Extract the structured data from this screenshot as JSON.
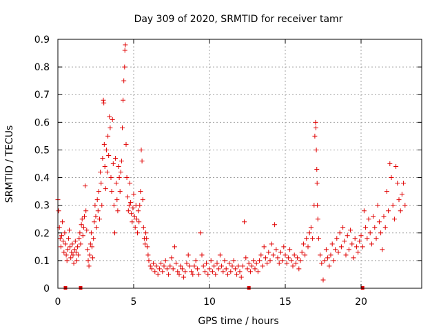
{
  "chart_data": {
    "type": "scatter",
    "title": "Day 309 of 2020, SRMTID for receiver tamr",
    "xlabel": "GPS time / hours",
    "ylabel": "SRMTID / TECUs",
    "xlim": [
      0,
      24
    ],
    "ylim": [
      0,
      0.9
    ],
    "xticks": [
      0,
      5,
      10,
      15,
      20
    ],
    "yticks": [
      0,
      0.1,
      0.2,
      0.3,
      0.4,
      0.5,
      0.6,
      0.7,
      0.8,
      0.9
    ],
    "xtick_labels": [
      "0",
      "5",
      "10",
      "15",
      "20"
    ],
    "ytick_labels": [
      "0",
      "0.1",
      "0.2",
      "0.3",
      "0.4",
      "0.5",
      "0.6",
      "0.7",
      "0.8",
      "0.9"
    ],
    "grid": true,
    "marker": "+",
    "color": "#e00000",
    "series": [
      {
        "name": "SRMTID",
        "points": [
          [
            0.0,
            0.32
          ],
          [
            0.05,
            0.28
          ],
          [
            0.1,
            0.22
          ],
          [
            0.15,
            0.18
          ],
          [
            0.2,
            0.15
          ],
          [
            0.25,
            0.19
          ],
          [
            0.3,
            0.24
          ],
          [
            0.35,
            0.17
          ],
          [
            0.4,
            0.13
          ],
          [
            0.45,
            0.2
          ],
          [
            0.5,
            0.16
          ],
          [
            0.55,
            0.12
          ],
          [
            0.6,
            0.1
          ],
          [
            0.65,
            0.14
          ],
          [
            0.7,
            0.18
          ],
          [
            0.75,
            0.21
          ],
          [
            0.8,
            0.15
          ],
          [
            0.85,
            0.11
          ],
          [
            0.9,
            0.13
          ],
          [
            0.95,
            0.16
          ],
          [
            1.0,
            0.12
          ],
          [
            1.05,
            0.09
          ],
          [
            1.1,
            0.14
          ],
          [
            1.15,
            0.17
          ],
          [
            1.2,
            0.13
          ],
          [
            1.25,
            0.1
          ],
          [
            1.3,
            0.15
          ],
          [
            1.35,
            0.12
          ],
          [
            1.4,
            0.18
          ],
          [
            1.45,
            0.2
          ],
          [
            1.5,
            0.16
          ],
          [
            1.55,
            0.23
          ],
          [
            1.6,
            0.25
          ],
          [
            1.65,
            0.19
          ],
          [
            1.7,
            0.22
          ],
          [
            1.75,
            0.26
          ],
          [
            1.8,
            0.37
          ],
          [
            1.85,
            0.28
          ],
          [
            1.9,
            0.21
          ],
          [
            1.95,
            0.14
          ],
          [
            2.0,
            0.1
          ],
          [
            2.05,
            0.08
          ],
          [
            2.1,
            0.12
          ],
          [
            2.15,
            0.16
          ],
          [
            2.2,
            0.2
          ],
          [
            2.25,
            0.15
          ],
          [
            2.3,
            0.11
          ],
          [
            2.35,
            0.18
          ],
          [
            2.4,
            0.24
          ],
          [
            2.45,
            0.3
          ],
          [
            2.5,
            0.26
          ],
          [
            2.55,
            0.22
          ],
          [
            2.6,
            0.32
          ],
          [
            2.65,
            0.28
          ],
          [
            2.7,
            0.35
          ],
          [
            2.75,
            0.25
          ],
          [
            2.8,
            0.42
          ],
          [
            2.85,
            0.38
          ],
          [
            2.9,
            0.3
          ],
          [
            2.95,
            0.47
          ],
          [
            3.0,
            0.68
          ],
          [
            3.03,
            0.67
          ],
          [
            3.06,
            0.52
          ],
          [
            3.1,
            0.44
          ],
          [
            3.15,
            0.36
          ],
          [
            3.2,
            0.5
          ],
          [
            3.25,
            0.42
          ],
          [
            3.3,
            0.55
          ],
          [
            3.35,
            0.48
          ],
          [
            3.4,
            0.62
          ],
          [
            3.45,
            0.58
          ],
          [
            3.5,
            0.4
          ],
          [
            3.55,
            0.35
          ],
          [
            3.6,
            0.61
          ],
          [
            3.65,
            0.45
          ],
          [
            3.7,
            0.3
          ],
          [
            3.75,
            0.2
          ],
          [
            3.8,
            0.47
          ],
          [
            3.85,
            0.38
          ],
          [
            3.9,
            0.32
          ],
          [
            3.95,
            0.28
          ],
          [
            4.0,
            0.44
          ],
          [
            4.05,
            0.4
          ],
          [
            4.1,
            0.35
          ],
          [
            4.15,
            0.42
          ],
          [
            4.2,
            0.46
          ],
          [
            4.25,
            0.58
          ],
          [
            4.3,
            0.68
          ],
          [
            4.35,
            0.75
          ],
          [
            4.4,
            0.8
          ],
          [
            4.42,
            0.86
          ],
          [
            4.45,
            0.88
          ],
          [
            4.5,
            0.52
          ],
          [
            4.55,
            0.4
          ],
          [
            4.6,
            0.33
          ],
          [
            4.65,
            0.28
          ],
          [
            4.7,
            0.3
          ],
          [
            4.75,
            0.38
          ],
          [
            4.8,
            0.31
          ],
          [
            4.85,
            0.27
          ],
          [
            4.9,
            0.24
          ],
          [
            4.95,
            0.29
          ],
          [
            5.0,
            0.34
          ],
          [
            5.05,
            0.26
          ],
          [
            5.1,
            0.22
          ],
          [
            5.15,
            0.3
          ],
          [
            5.2,
            0.25
          ],
          [
            5.25,
            0.2
          ],
          [
            5.3,
            0.28
          ],
          [
            5.35,
            0.24
          ],
          [
            5.4,
            0.3
          ],
          [
            5.45,
            0.35
          ],
          [
            5.5,
            0.5
          ],
          [
            5.55,
            0.46
          ],
          [
            5.6,
            0.32
          ],
          [
            5.65,
            0.22
          ],
          [
            5.7,
            0.18
          ],
          [
            5.75,
            0.16
          ],
          [
            5.8,
            0.2
          ],
          [
            5.85,
            0.18
          ],
          [
            5.9,
            0.15
          ],
          [
            5.95,
            0.12
          ],
          [
            6.0,
            0.1
          ],
          [
            6.1,
            0.08
          ],
          [
            6.2,
            0.07
          ],
          [
            6.3,
            0.09
          ],
          [
            6.4,
            0.06
          ],
          [
            6.5,
            0.08
          ],
          [
            6.6,
            0.05
          ],
          [
            6.7,
            0.07
          ],
          [
            6.8,
            0.09
          ],
          [
            6.9,
            0.06
          ],
          [
            7.0,
            0.08
          ],
          [
            7.1,
            0.1
          ],
          [
            7.2,
            0.07
          ],
          [
            7.3,
            0.05
          ],
          [
            7.4,
            0.08
          ],
          [
            7.5,
            0.11
          ],
          [
            7.6,
            0.07
          ],
          [
            7.7,
            0.15
          ],
          [
            7.8,
            0.09
          ],
          [
            7.9,
            0.06
          ],
          [
            8.0,
            0.05
          ],
          [
            8.1,
            0.08
          ],
          [
            8.2,
            0.07
          ],
          [
            8.3,
            0.04
          ],
          [
            8.4,
            0.06
          ],
          [
            8.5,
            0.09
          ],
          [
            8.6,
            0.12
          ],
          [
            8.7,
            0.08
          ],
          [
            8.8,
            0.06
          ],
          [
            8.9,
            0.05
          ],
          [
            9.0,
            0.08
          ],
          [
            9.1,
            0.1
          ],
          [
            9.2,
            0.07
          ],
          [
            9.3,
            0.05
          ],
          [
            9.4,
            0.2
          ],
          [
            9.5,
            0.12
          ],
          [
            9.6,
            0.08
          ],
          [
            9.7,
            0.06
          ],
          [
            9.8,
            0.09
          ],
          [
            9.9,
            0.05
          ],
          [
            10.0,
            0.07
          ],
          [
            10.1,
            0.1
          ],
          [
            10.2,
            0.06
          ],
          [
            10.3,
            0.08
          ],
          [
            10.4,
            0.05
          ],
          [
            10.5,
            0.09
          ],
          [
            10.6,
            0.07
          ],
          [
            10.7,
            0.12
          ],
          [
            10.8,
            0.08
          ],
          [
            10.9,
            0.06
          ],
          [
            11.0,
            0.1
          ],
          [
            11.1,
            0.07
          ],
          [
            11.2,
            0.05
          ],
          [
            11.3,
            0.09
          ],
          [
            11.4,
            0.06
          ],
          [
            11.5,
            0.08
          ],
          [
            11.6,
            0.1
          ],
          [
            11.7,
            0.07
          ],
          [
            11.8,
            0.05
          ],
          [
            11.9,
            0.08
          ],
          [
            12.0,
            0.06
          ],
          [
            12.1,
            0.04
          ],
          [
            12.2,
            0.08
          ],
          [
            12.3,
            0.24
          ],
          [
            12.4,
            0.11
          ],
          [
            12.5,
            0.07
          ],
          [
            12.6,
            0.09
          ],
          [
            12.7,
            0.06
          ],
          [
            12.8,
            0.08
          ],
          [
            12.9,
            0.1
          ],
          [
            13.0,
            0.07
          ],
          [
            13.1,
            0.09
          ],
          [
            13.2,
            0.06
          ],
          [
            13.3,
            0.1
          ],
          [
            13.4,
            0.12
          ],
          [
            13.5,
            0.08
          ],
          [
            13.6,
            0.15
          ],
          [
            13.7,
            0.11
          ],
          [
            13.8,
            0.09
          ],
          [
            13.9,
            0.13
          ],
          [
            14.0,
            0.1
          ],
          [
            14.1,
            0.16
          ],
          [
            14.2,
            0.12
          ],
          [
            14.3,
            0.23
          ],
          [
            14.4,
            0.14
          ],
          [
            14.5,
            0.11
          ],
          [
            14.6,
            0.09
          ],
          [
            14.7,
            0.13
          ],
          [
            14.8,
            0.1
          ],
          [
            14.9,
            0.15
          ],
          [
            15.0,
            0.12
          ],
          [
            15.1,
            0.09
          ],
          [
            15.2,
            0.11
          ],
          [
            15.3,
            0.14
          ],
          [
            15.4,
            0.1
          ],
          [
            15.5,
            0.08
          ],
          [
            15.6,
            0.12
          ],
          [
            15.7,
            0.09
          ],
          [
            15.8,
            0.11
          ],
          [
            15.9,
            0.07
          ],
          [
            16.0,
            0.1
          ],
          [
            16.1,
            0.13
          ],
          [
            16.2,
            0.16
          ],
          [
            16.3,
            0.12
          ],
          [
            16.4,
            0.18
          ],
          [
            16.5,
            0.15
          ],
          [
            16.6,
            0.2
          ],
          [
            16.7,
            0.22
          ],
          [
            16.8,
            0.18
          ],
          [
            16.9,
            0.3
          ],
          [
            16.95,
            0.55
          ],
          [
            17.0,
            0.6
          ],
          [
            17.02,
            0.58
          ],
          [
            17.05,
            0.5
          ],
          [
            17.08,
            0.43
          ],
          [
            17.1,
            0.38
          ],
          [
            17.12,
            0.3
          ],
          [
            17.15,
            0.25
          ],
          [
            17.2,
            0.18
          ],
          [
            17.3,
            0.12
          ],
          [
            17.4,
            0.09
          ],
          [
            17.5,
            0.03
          ],
          [
            17.6,
            0.1
          ],
          [
            17.7,
            0.14
          ],
          [
            17.8,
            0.11
          ],
          [
            17.9,
            0.08
          ],
          [
            18.0,
            0.12
          ],
          [
            18.1,
            0.16
          ],
          [
            18.2,
            0.1
          ],
          [
            18.3,
            0.14
          ],
          [
            18.4,
            0.18
          ],
          [
            18.5,
            0.13
          ],
          [
            18.6,
            0.2
          ],
          [
            18.7,
            0.15
          ],
          [
            18.8,
            0.22
          ],
          [
            18.9,
            0.17
          ],
          [
            19.0,
            0.12
          ],
          [
            19.1,
            0.19
          ],
          [
            19.2,
            0.14
          ],
          [
            19.3,
            0.21
          ],
          [
            19.4,
            0.16
          ],
          [
            19.5,
            0.11
          ],
          [
            19.6,
            0.18
          ],
          [
            19.7,
            0.15
          ],
          [
            19.8,
            0.13
          ],
          [
            19.9,
            0.17
          ],
          [
            20.0,
            0.19
          ],
          [
            20.1,
            0.15
          ],
          [
            20.2,
            0.28
          ],
          [
            20.3,
            0.22
          ],
          [
            20.4,
            0.18
          ],
          [
            20.5,
            0.25
          ],
          [
            20.6,
            0.2
          ],
          [
            20.7,
            0.16
          ],
          [
            20.8,
            0.26
          ],
          [
            20.9,
            0.22
          ],
          [
            21.0,
            0.18
          ],
          [
            21.1,
            0.3
          ],
          [
            21.2,
            0.24
          ],
          [
            21.3,
            0.2
          ],
          [
            21.4,
            0.14
          ],
          [
            21.5,
            0.26
          ],
          [
            21.6,
            0.22
          ],
          [
            21.7,
            0.35
          ],
          [
            21.8,
            0.28
          ],
          [
            21.9,
            0.45
          ],
          [
            22.0,
            0.4
          ],
          [
            22.1,
            0.3
          ],
          [
            22.2,
            0.25
          ],
          [
            22.3,
            0.44
          ],
          [
            22.4,
            0.38
          ],
          [
            22.5,
            0.32
          ],
          [
            22.6,
            0.28
          ],
          [
            22.7,
            0.34
          ],
          [
            22.8,
            0.38
          ],
          [
            22.9,
            0.3
          ]
        ]
      }
    ],
    "gap_markers": [
      0.5,
      1.5,
      12.6,
      20.1
    ]
  }
}
